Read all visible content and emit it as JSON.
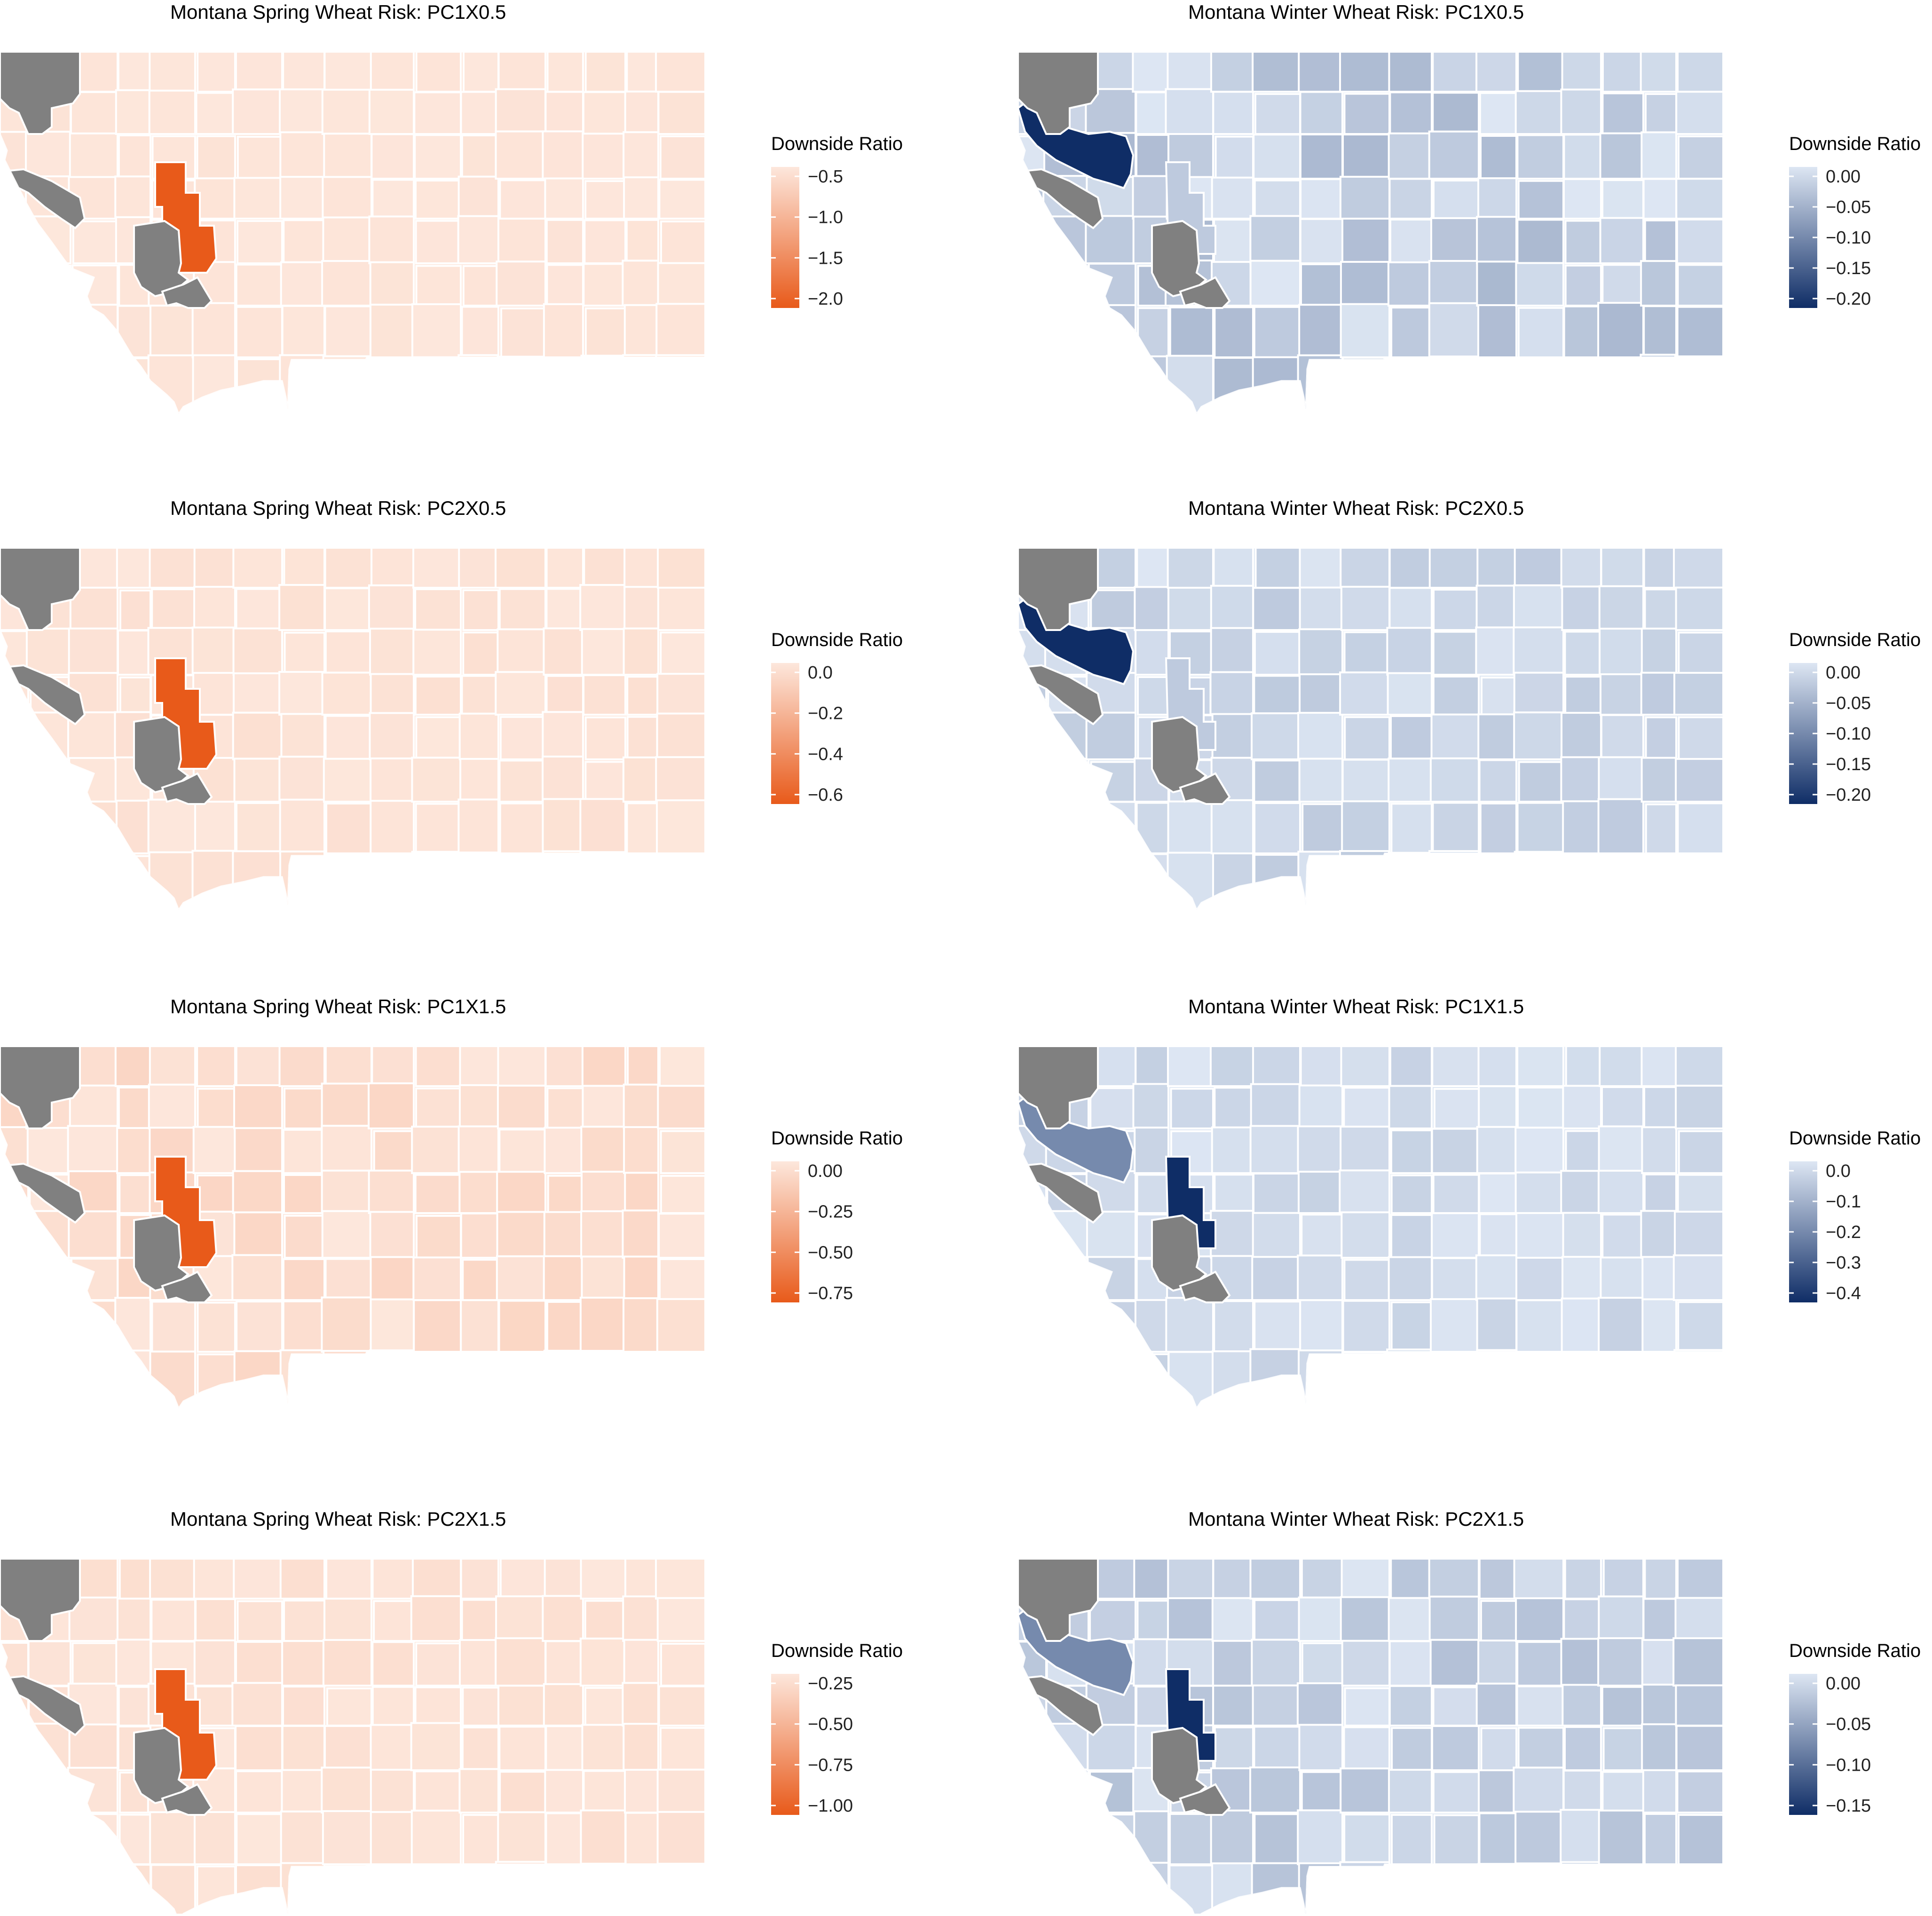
{
  "figure": {
    "legend_title": "Downside Ratio",
    "missing_color": "#808080",
    "border_color": "#ffffff"
  },
  "panels": [
    {
      "title": "Montana Spring Wheat Risk: PC1X0.5",
      "scale": {
        "low": "#e85a1a",
        "high": "#fde7dc"
      },
      "legend_ticks": [
        "−0.5",
        "−1.0",
        "−1.5",
        "−2.0"
      ],
      "highlight_tint": 0.03
    },
    {
      "title": "Montana Winter Wheat Risk: PC1X0.5",
      "scale": {
        "low": "#0f2d66",
        "high": "#dde6f3"
      },
      "legend_ticks": [
        "0.00",
        "−0.05",
        "−0.10",
        "−0.15",
        "−0.20"
      ],
      "highlight_tint": 0.25
    },
    {
      "title": "Montana Spring Wheat Risk: PC2X0.5",
      "scale": {
        "low": "#e85a1a",
        "high": "#fde7dc"
      },
      "legend_ticks": [
        "0.0",
        "−0.2",
        "−0.4",
        "−0.6"
      ],
      "highlight_tint": 0.05
    },
    {
      "title": "Montana Winter Wheat Risk: PC2X0.5",
      "scale": {
        "low": "#0f2d66",
        "high": "#dde6f3"
      },
      "legend_ticks": [
        "0.00",
        "−0.05",
        "−0.10",
        "−0.15",
        "−0.20"
      ],
      "highlight_tint": 0.15
    },
    {
      "title": "Montana Spring Wheat Risk: PC1X1.5",
      "scale": {
        "low": "#e85a1a",
        "high": "#fde7dc"
      },
      "legend_ticks": [
        "0.00",
        "−0.25",
        "−0.50",
        "−0.75"
      ],
      "highlight_tint": 0.12
    },
    {
      "title": "Montana Winter Wheat Risk: PC1X1.5",
      "scale": {
        "low": "#0f2d66",
        "high": "#dde6f3"
      },
      "legend_ticks": [
        "0.0",
        "−0.1",
        "−0.2",
        "−0.3",
        "−0.4"
      ],
      "highlight_tint": 0.12
    },
    {
      "title": "Montana Spring Wheat Risk: PC2X1.5",
      "scale": {
        "low": "#e85a1a",
        "high": "#fde7dc"
      },
      "legend_ticks": [
        "−0.25",
        "−0.50",
        "−0.75",
        "−1.00"
      ],
      "highlight_tint": 0.06
    },
    {
      "title": "Montana Winter Wheat Risk: PC2X1.5",
      "scale": {
        "low": "#0f2d66",
        "high": "#dde6f3"
      },
      "legend_ticks": [
        "0.00",
        "−0.05",
        "−0.10",
        "−0.15"
      ],
      "highlight_tint": 0.2
    }
  ]
}
